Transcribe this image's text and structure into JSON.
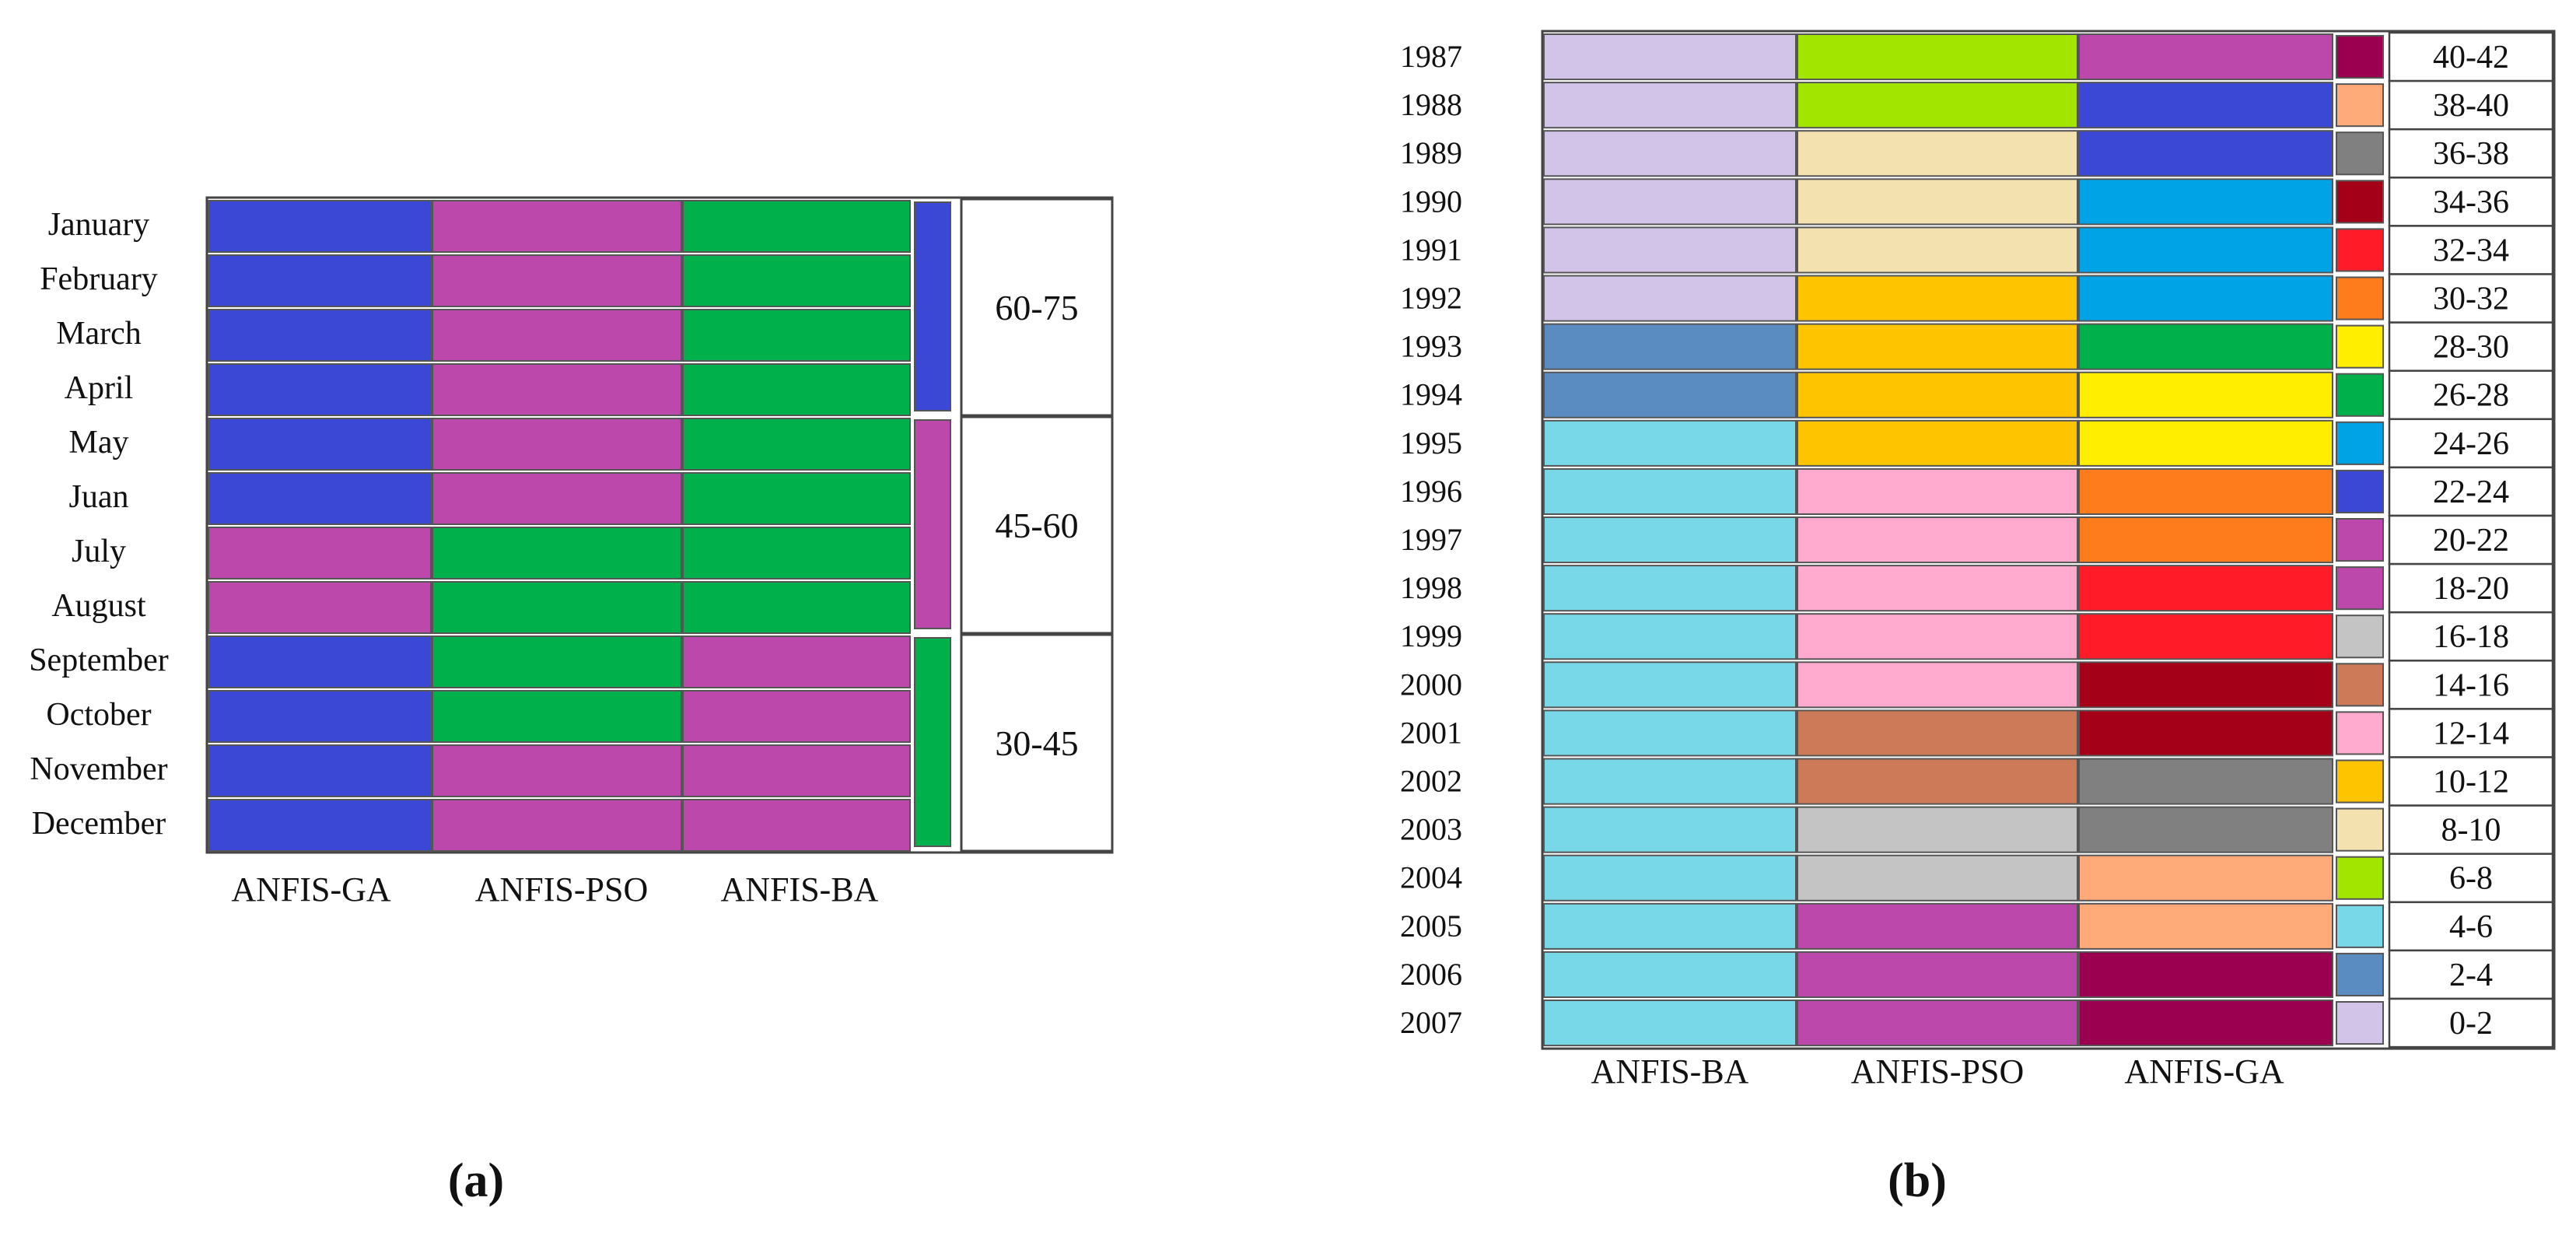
{
  "chart_data": [
    {
      "type": "heatmap",
      "panel_label": "(a)",
      "rows": [
        "January",
        "February",
        "March",
        "April",
        "May",
        "Juan",
        "July",
        "August",
        "September",
        "October",
        "November",
        "December"
      ],
      "columns": [
        "ANFIS-GA",
        "ANFIS-PSO",
        "ANFIS-BA"
      ],
      "cells": [
        [
          "60-75",
          "45-60",
          "30-45"
        ],
        [
          "60-75",
          "45-60",
          "30-45"
        ],
        [
          "60-75",
          "45-60",
          "30-45"
        ],
        [
          "60-75",
          "45-60",
          "30-45"
        ],
        [
          "60-75",
          "45-60",
          "30-45"
        ],
        [
          "60-75",
          "45-60",
          "30-45"
        ],
        [
          "45-60",
          "30-45",
          "30-45"
        ],
        [
          "45-60",
          "30-45",
          "30-45"
        ],
        [
          "60-75",
          "30-45",
          "45-60"
        ],
        [
          "60-75",
          "30-45",
          "45-60"
        ],
        [
          "60-75",
          "45-60",
          "45-60"
        ],
        [
          "60-75",
          "45-60",
          "45-60"
        ]
      ],
      "legend": [
        {
          "range": "60-75",
          "color": "#3b48d6"
        },
        {
          "range": "45-60",
          "color": "#bb48aa"
        },
        {
          "range": "30-45",
          "color": "#00b04a"
        }
      ]
    },
    {
      "type": "heatmap",
      "panel_label": "(b)",
      "rows": [
        "1987",
        "1988",
        "1989",
        "1990",
        "1991",
        "1992",
        "1993",
        "1994",
        "1995",
        "1996",
        "1997",
        "1998",
        "1999",
        "2000",
        "2001",
        "2002",
        "2003",
        "2004",
        "2005",
        "2006",
        "2007"
      ],
      "columns": [
        "ANFIS-BA",
        "ANFIS-PSO",
        "ANFIS-GA"
      ],
      "cells": [
        [
          "0-2",
          "6-8",
          "20-22"
        ],
        [
          "0-2",
          "6-8",
          "22-24"
        ],
        [
          "0-2",
          "8-10",
          "22-24"
        ],
        [
          "0-2",
          "8-10",
          "24-26"
        ],
        [
          "0-2",
          "8-10",
          "24-26"
        ],
        [
          "0-2",
          "10-12",
          "24-26"
        ],
        [
          "2-4",
          "10-12",
          "26-28"
        ],
        [
          "2-4",
          "10-12",
          "28-30"
        ],
        [
          "4-6",
          "10-12",
          "28-30"
        ],
        [
          "4-6",
          "12-14",
          "30-32"
        ],
        [
          "4-6",
          "12-14",
          "30-32"
        ],
        [
          "4-6",
          "12-14",
          "32-34"
        ],
        [
          "4-6",
          "12-14",
          "32-34"
        ],
        [
          "4-6",
          "12-14",
          "34-36"
        ],
        [
          "4-6",
          "14-16",
          "34-36"
        ],
        [
          "4-6",
          "14-16",
          "36-38"
        ],
        [
          "4-6",
          "16-18",
          "36-38"
        ],
        [
          "4-6",
          "16-18",
          "38-40"
        ],
        [
          "4-6",
          "18-20",
          "38-40"
        ],
        [
          "4-6",
          "18-20",
          "40-42"
        ],
        [
          "4-6",
          "18-20",
          "40-42"
        ]
      ],
      "legend": [
        {
          "range": "40-42",
          "color": "#9b0050"
        },
        {
          "range": "38-40",
          "color": "#ffaa78"
        },
        {
          "range": "36-38",
          "color": "#808080"
        },
        {
          "range": "34-36",
          "color": "#a40018"
        },
        {
          "range": "32-34",
          "color": "#ff1c28"
        },
        {
          "range": "30-32",
          "color": "#ff7c1c"
        },
        {
          "range": "28-30",
          "color": "#ffee00"
        },
        {
          "range": "26-28",
          "color": "#00b04a"
        },
        {
          "range": "24-26",
          "color": "#00a4e6"
        },
        {
          "range": "22-24",
          "color": "#3b48d6"
        },
        {
          "range": "20-22",
          "color": "#bb48aa"
        },
        {
          "range": "18-20",
          "color": "#bb48aa"
        },
        {
          "range": "16-18",
          "color": "#c4c4c4"
        },
        {
          "range": "14-16",
          "color": "#cc7a58"
        },
        {
          "range": "12-14",
          "color": "#ffaace"
        },
        {
          "range": "10-12",
          "color": "#ffc400"
        },
        {
          "range": "8-10",
          "color": "#f3e2b0"
        },
        {
          "range": "6-8",
          "color": "#a2e600"
        },
        {
          "range": "4-6",
          "color": "#78d8e8"
        },
        {
          "range": "2-4",
          "color": "#5a8cc2"
        },
        {
          "range": "0-2",
          "color": "#d2c4e8"
        }
      ]
    }
  ]
}
